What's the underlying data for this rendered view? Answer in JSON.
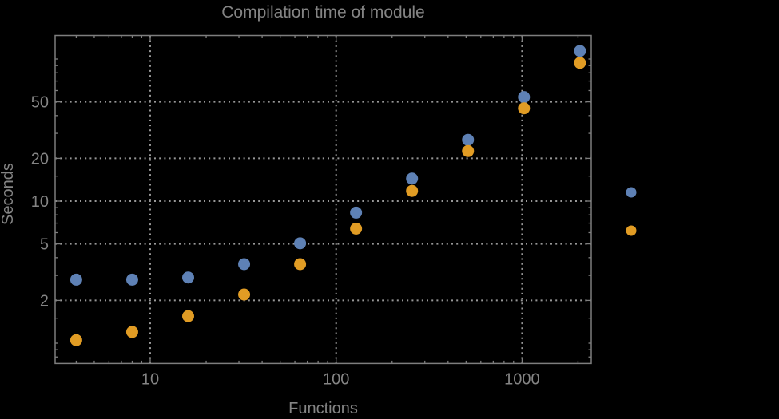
{
  "title": "Compilation time of module",
  "colors": {
    "background": "#000000",
    "text": "#848484",
    "frame": "#7e7e7e",
    "grid": "#989898",
    "series1": "#5e81b5",
    "series2": "#e19c24"
  },
  "chart_data": {
    "type": "scatter",
    "title": "Compilation time of module",
    "xlabel": "Functions",
    "ylabel": "Seconds",
    "x_scale": "log",
    "y_scale": "log",
    "x_range": [
      3.1,
      2350
    ],
    "y_range": [
      0.72,
      147
    ],
    "grid": "dotted gridlines at labeled major ticks only",
    "x_ticks": {
      "major": [
        10,
        100,
        1000
      ],
      "labels": [
        "10",
        "100",
        "1000"
      ],
      "minor": [
        4,
        5,
        6,
        7,
        8,
        9,
        20,
        30,
        40,
        50,
        60,
        70,
        80,
        90,
        200,
        300,
        400,
        500,
        600,
        700,
        800,
        900,
        2000
      ]
    },
    "y_ticks": {
      "major": [
        2,
        5,
        10,
        20,
        50
      ],
      "labels": [
        "2",
        "5",
        "10",
        "20",
        "50"
      ],
      "minor": [
        0.8,
        0.9,
        1,
        1.5,
        3,
        4,
        6,
        7,
        8,
        9,
        15,
        30,
        40,
        60,
        70,
        80,
        90,
        100
      ]
    },
    "x": [
      4,
      8,
      16,
      32,
      64,
      128,
      256,
      512,
      1024,
      2048
    ],
    "series": [
      {
        "name": "series-1-blue",
        "color": "#5e81b5",
        "values": [
          2.8,
          2.8,
          2.9,
          3.6,
          5.05,
          8.3,
          14.4,
          27,
          54,
          114
        ]
      },
      {
        "name": "series-2-orange",
        "color": "#e19c24",
        "values": [
          1.05,
          1.2,
          1.55,
          2.2,
          3.6,
          6.4,
          11.8,
          22.5,
          45,
          94
        ]
      }
    ],
    "legend": {
      "position": "right-of-plot",
      "entries": [
        {
          "marker_color": "#5e81b5",
          "label": ""
        },
        {
          "marker_color": "#e19c24",
          "label": ""
        }
      ]
    }
  }
}
